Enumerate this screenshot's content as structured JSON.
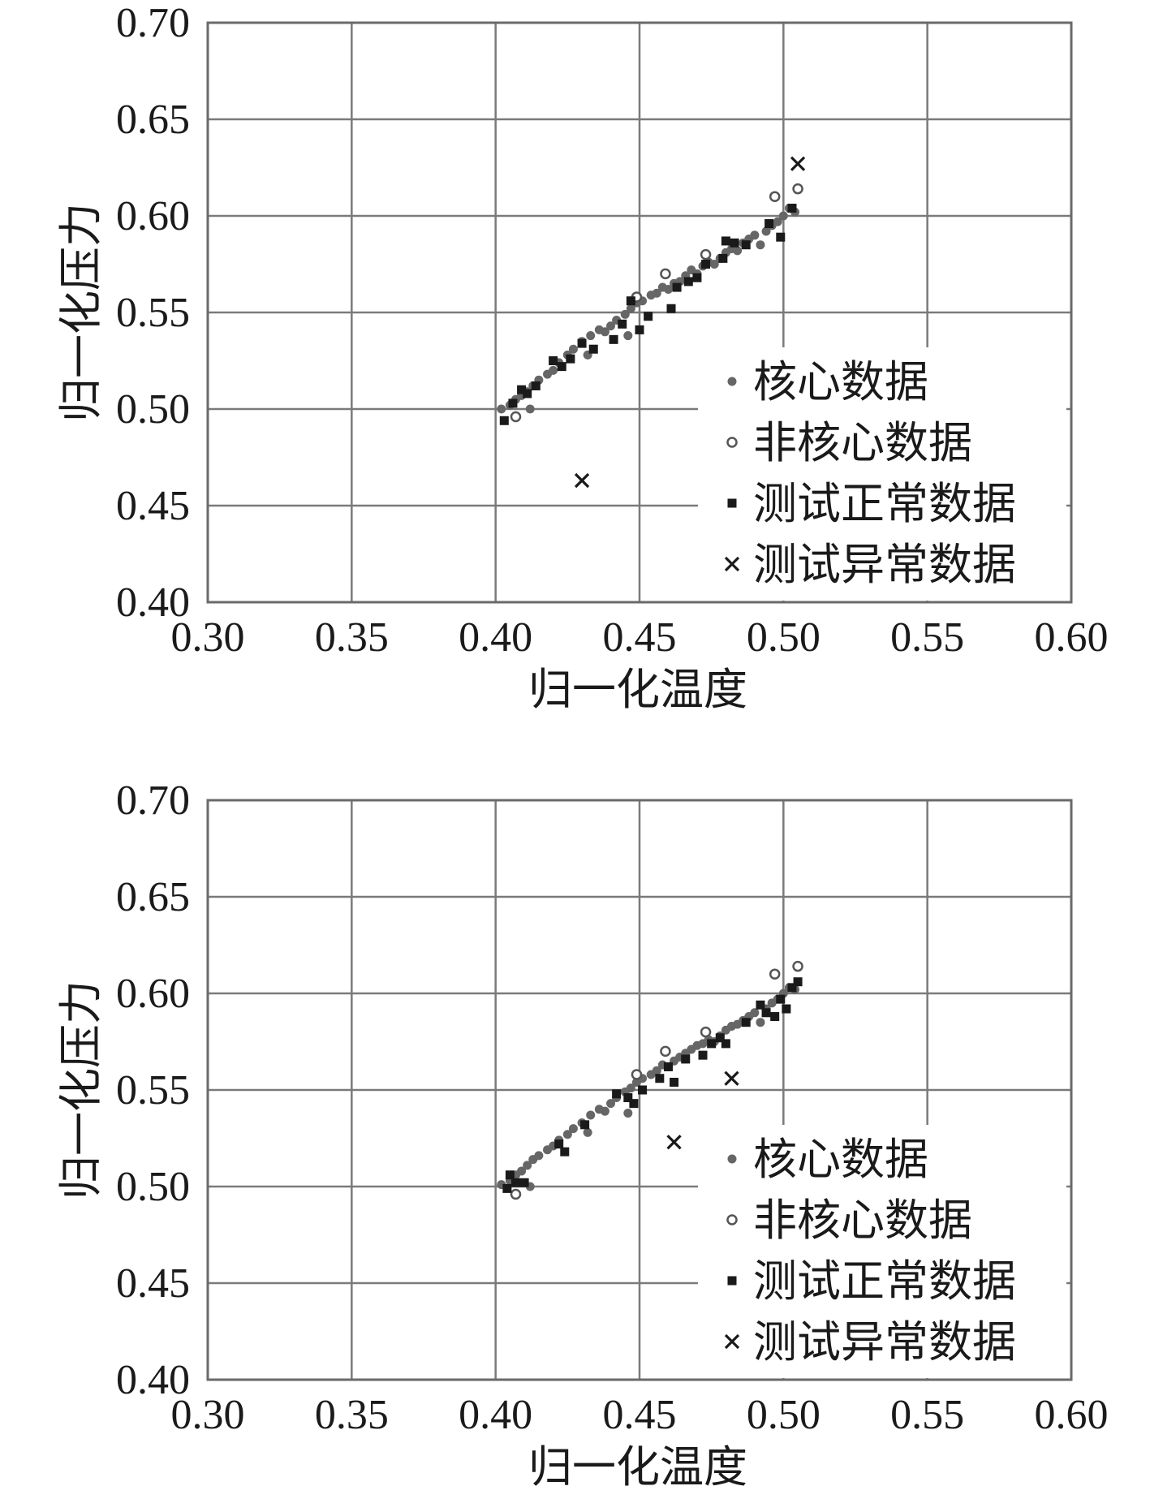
{
  "chart_data": [
    {
      "type": "scatter",
      "xlabel": "归一化温度",
      "ylabel": "归一化压力",
      "xlim": [
        0.3,
        0.6
      ],
      "ylim": [
        0.4,
        0.7
      ],
      "xticks": [
        "0.30",
        "0.35",
        "0.40",
        "0.45",
        "0.50",
        "0.55",
        "0.60"
      ],
      "yticks": [
        "0.40",
        "0.45",
        "0.50",
        "0.55",
        "0.60",
        "0.65",
        "0.70"
      ],
      "grid": true,
      "legend_position": "bottom-right",
      "series": [
        {
          "name": "核心数据",
          "marker": "dot",
          "color": "#666666",
          "points": [
            [
              0.402,
              0.5
            ],
            [
              0.405,
              0.502
            ],
            [
              0.407,
              0.505
            ],
            [
              0.409,
              0.507
            ],
            [
              0.411,
              0.509
            ],
            [
              0.413,
              0.512
            ],
            [
              0.415,
              0.515
            ],
            [
              0.418,
              0.518
            ],
            [
              0.42,
              0.52
            ],
            [
              0.422,
              0.524
            ],
            [
              0.425,
              0.528
            ],
            [
              0.427,
              0.531
            ],
            [
              0.43,
              0.535
            ],
            [
              0.433,
              0.538
            ],
            [
              0.436,
              0.541
            ],
            [
              0.438,
              0.54
            ],
            [
              0.44,
              0.543
            ],
            [
              0.442,
              0.546
            ],
            [
              0.445,
              0.549
            ],
            [
              0.447,
              0.552
            ],
            [
              0.449,
              0.555
            ],
            [
              0.451,
              0.556
            ],
            [
              0.454,
              0.559
            ],
            [
              0.456,
              0.56
            ],
            [
              0.458,
              0.563
            ],
            [
              0.46,
              0.562
            ],
            [
              0.462,
              0.565
            ],
            [
              0.464,
              0.566
            ],
            [
              0.466,
              0.569
            ],
            [
              0.468,
              0.572
            ],
            [
              0.47,
              0.57
            ],
            [
              0.472,
              0.574
            ],
            [
              0.474,
              0.576
            ],
            [
              0.476,
              0.575
            ],
            [
              0.478,
              0.578
            ],
            [
              0.48,
              0.581
            ],
            [
              0.482,
              0.583
            ],
            [
              0.484,
              0.582
            ],
            [
              0.486,
              0.586
            ],
            [
              0.488,
              0.588
            ],
            [
              0.49,
              0.59
            ],
            [
              0.492,
              0.585
            ],
            [
              0.494,
              0.592
            ],
            [
              0.496,
              0.595
            ],
            [
              0.498,
              0.597
            ],
            [
              0.5,
              0.6
            ],
            [
              0.502,
              0.604
            ],
            [
              0.504,
              0.602
            ],
            [
              0.412,
              0.5
            ],
            [
              0.432,
              0.528
            ],
            [
              0.446,
              0.538
            ]
          ]
        },
        {
          "name": "非核心数据",
          "marker": "circle",
          "color": "#555555",
          "points": [
            [
              0.407,
              0.496
            ],
            [
              0.449,
              0.558
            ],
            [
              0.459,
              0.57
            ],
            [
              0.473,
              0.58
            ],
            [
              0.497,
              0.61
            ],
            [
              0.505,
              0.614
            ]
          ]
        },
        {
          "name": "测试正常数据",
          "marker": "square",
          "color": "#1a1a1a",
          "points": [
            [
              0.403,
              0.494
            ],
            [
              0.406,
              0.503
            ],
            [
              0.409,
              0.51
            ],
            [
              0.411,
              0.508
            ],
            [
              0.414,
              0.512
            ],
            [
              0.42,
              0.525
            ],
            [
              0.423,
              0.522
            ],
            [
              0.426,
              0.526
            ],
            [
              0.43,
              0.534
            ],
            [
              0.434,
              0.531
            ],
            [
              0.441,
              0.536
            ],
            [
              0.444,
              0.544
            ],
            [
              0.447,
              0.556
            ],
            [
              0.45,
              0.541
            ],
            [
              0.453,
              0.548
            ],
            [
              0.461,
              0.552
            ],
            [
              0.463,
              0.563
            ],
            [
              0.467,
              0.566
            ],
            [
              0.47,
              0.568
            ],
            [
              0.473,
              0.575
            ],
            [
              0.479,
              0.578
            ],
            [
              0.48,
              0.587
            ],
            [
              0.483,
              0.586
            ],
            [
              0.487,
              0.585
            ],
            [
              0.495,
              0.596
            ],
            [
              0.499,
              0.589
            ],
            [
              0.503,
              0.604
            ]
          ]
        },
        {
          "name": "测试异常数据",
          "marker": "cross",
          "color": "#1a1a1a",
          "points": [
            [
              0.43,
              0.463
            ],
            [
              0.505,
              0.627
            ]
          ]
        }
      ]
    },
    {
      "type": "scatter",
      "xlabel": "归一化温度",
      "ylabel": "归一化压力",
      "xlim": [
        0.3,
        0.6
      ],
      "ylim": [
        0.4,
        0.7
      ],
      "xticks": [
        "0.30",
        "0.35",
        "0.40",
        "0.45",
        "0.50",
        "0.55",
        "0.60"
      ],
      "yticks": [
        "0.40",
        "0.45",
        "0.50",
        "0.55",
        "0.60",
        "0.65",
        "0.70"
      ],
      "grid": true,
      "legend_position": "bottom-right",
      "series": [
        {
          "name": "核心数据",
          "marker": "dot",
          "color": "#666666",
          "points": [
            [
              0.402,
              0.501
            ],
            [
              0.405,
              0.503
            ],
            [
              0.407,
              0.506
            ],
            [
              0.409,
              0.508
            ],
            [
              0.411,
              0.511
            ],
            [
              0.413,
              0.514
            ],
            [
              0.415,
              0.516
            ],
            [
              0.418,
              0.519
            ],
            [
              0.42,
              0.521
            ],
            [
              0.422,
              0.524
            ],
            [
              0.425,
              0.527
            ],
            [
              0.427,
              0.53
            ],
            [
              0.43,
              0.533
            ],
            [
              0.433,
              0.537
            ],
            [
              0.436,
              0.54
            ],
            [
              0.438,
              0.539
            ],
            [
              0.44,
              0.543
            ],
            [
              0.442,
              0.546
            ],
            [
              0.445,
              0.549
            ],
            [
              0.447,
              0.551
            ],
            [
              0.449,
              0.554
            ],
            [
              0.451,
              0.556
            ],
            [
              0.454,
              0.558
            ],
            [
              0.456,
              0.56
            ],
            [
              0.458,
              0.563
            ],
            [
              0.46,
              0.562
            ],
            [
              0.462,
              0.565
            ],
            [
              0.464,
              0.567
            ],
            [
              0.466,
              0.569
            ],
            [
              0.468,
              0.571
            ],
            [
              0.47,
              0.573
            ],
            [
              0.472,
              0.574
            ],
            [
              0.474,
              0.576
            ],
            [
              0.476,
              0.575
            ],
            [
              0.478,
              0.578
            ],
            [
              0.48,
              0.581
            ],
            [
              0.482,
              0.583
            ],
            [
              0.484,
              0.584
            ],
            [
              0.486,
              0.586
            ],
            [
              0.488,
              0.588
            ],
            [
              0.49,
              0.59
            ],
            [
              0.492,
              0.585
            ],
            [
              0.494,
              0.592
            ],
            [
              0.496,
              0.595
            ],
            [
              0.498,
              0.597
            ],
            [
              0.5,
              0.6
            ],
            [
              0.502,
              0.603
            ],
            [
              0.504,
              0.602
            ],
            [
              0.412,
              0.5
            ],
            [
              0.432,
              0.528
            ],
            [
              0.446,
              0.538
            ]
          ]
        },
        {
          "name": "非核心数据",
          "marker": "circle",
          "color": "#555555",
          "points": [
            [
              0.407,
              0.496
            ],
            [
              0.449,
              0.558
            ],
            [
              0.459,
              0.57
            ],
            [
              0.473,
              0.58
            ],
            [
              0.497,
              0.61
            ],
            [
              0.505,
              0.614
            ]
          ]
        },
        {
          "name": "测试正常数据",
          "marker": "square",
          "color": "#1a1a1a",
          "points": [
            [
              0.404,
              0.499
            ],
            [
              0.405,
              0.506
            ],
            [
              0.407,
              0.502
            ],
            [
              0.41,
              0.502
            ],
            [
              0.422,
              0.522
            ],
            [
              0.424,
              0.518
            ],
            [
              0.431,
              0.532
            ],
            [
              0.442,
              0.548
            ],
            [
              0.446,
              0.546
            ],
            [
              0.448,
              0.543
            ],
            [
              0.451,
              0.55
            ],
            [
              0.457,
              0.556
            ],
            [
              0.46,
              0.562
            ],
            [
              0.462,
              0.554
            ],
            [
              0.466,
              0.566
            ],
            [
              0.472,
              0.568
            ],
            [
              0.475,
              0.574
            ],
            [
              0.478,
              0.577
            ],
            [
              0.48,
              0.574
            ],
            [
              0.487,
              0.585
            ],
            [
              0.492,
              0.594
            ],
            [
              0.494,
              0.59
            ],
            [
              0.497,
              0.588
            ],
            [
              0.499,
              0.597
            ],
            [
              0.501,
              0.592
            ],
            [
              0.503,
              0.603
            ],
            [
              0.505,
              0.606
            ]
          ]
        },
        {
          "name": "测试异常数据",
          "marker": "cross",
          "color": "#1a1a1a",
          "points": [
            [
              0.462,
              0.523
            ],
            [
              0.482,
              0.556
            ]
          ]
        }
      ]
    }
  ]
}
